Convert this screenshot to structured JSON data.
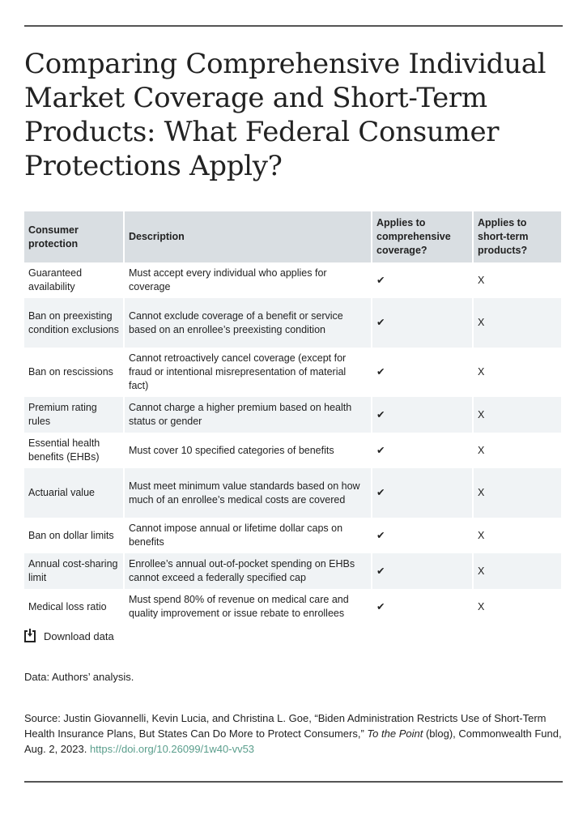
{
  "title": "Comparing Comprehensive Individual Market Coverage and Short-Term Products: What Federal Consumer Protections Apply?",
  "table": {
    "headers": [
      "Consumer protection",
      "Description",
      "Applies to comprehensive coverage?",
      "Applies to short-term products?"
    ],
    "rows": [
      {
        "protection": "Guaranteed availability",
        "description": "Must accept every individual who applies for coverage",
        "comprehensive": "✔",
        "short_term": "X"
      },
      {
        "protection": "Ban on preexisting condition exclusions",
        "description": "Cannot exclude coverage of a benefit or service based on an enrollee’s preexisting condition",
        "comprehensive": "✔",
        "short_term": "X"
      },
      {
        "protection": "Ban on rescissions",
        "description": "Cannot retroactively cancel coverage (except for fraud or intentional misrepresentation of material fact)",
        "comprehensive": "✔",
        "short_term": "X"
      },
      {
        "protection": "Premium rating rules",
        "description": "Cannot charge a higher premium based on health status or gender",
        "comprehensive": "✔",
        "short_term": "X"
      },
      {
        "protection": "Essential health benefits (EHBs)",
        "description": "Must cover 10 specified categories of benefits",
        "comprehensive": "✔",
        "short_term": "X"
      },
      {
        "protection": "Actuarial value",
        "description": "Must meet minimum value standards based on how much of an enrollee’s medical costs are covered",
        "comprehensive": "✔",
        "short_term": "X"
      },
      {
        "protection": "Ban on dollar limits",
        "description": "Cannot impose annual or lifetime dollar caps on benefits",
        "comprehensive": "✔",
        "short_term": "X"
      },
      {
        "protection": "Annual cost-sharing limit",
        "description": "Enrollee’s annual out-of-pocket spending on EHBs cannot exceed a federally specified cap",
        "comprehensive": "✔",
        "short_term": "X"
      },
      {
        "protection": "Medical loss ratio",
        "description": "Must spend 80% of revenue on medical care and quality improvement or issue rebate to enrollees",
        "comprehensive": "✔",
        "short_term": "X"
      }
    ]
  },
  "download": {
    "label": "Download data",
    "icon": "download-icon"
  },
  "data_note": "Data: Authors’ analysis.",
  "source": {
    "prefix": "Source: Justin Giovannelli, Kevin Lucia, and Christina L. Goe, “Biden Administration Restricts Use of Short-Term Health Insurance Plans, But States Can Do More to Protect Consumers,” ",
    "publication": "To the Point",
    "suffix": " (blog), Commonwealth Fund, Aug. 2, 2023. ",
    "link": "https://doi.org/10.26099/1w40-vv53"
  },
  "colors": {
    "header_bg": "#d9dee2",
    "stripe_bg": "#f0f3f5",
    "link": "#5a9e8c",
    "rule": "#555555"
  }
}
